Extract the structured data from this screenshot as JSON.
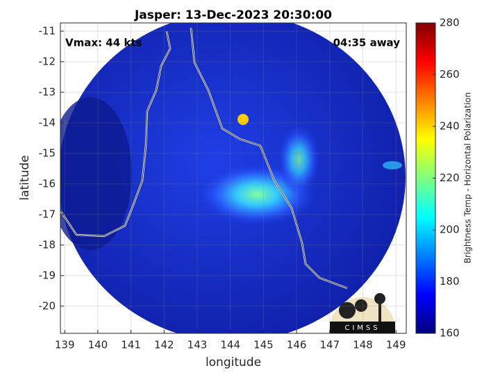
{
  "chart_data": {
    "type": "map",
    "title": "Jasper: 13-Dec-2023 20:30:00",
    "annotations": [
      "Vmax: 44 kts",
      "04:35 away"
    ],
    "xlabel": "longitude",
    "ylabel": "latitude",
    "xlim": [
      138.87,
      149.31
    ],
    "ylim": [
      -20.89,
      -10.73
    ],
    "xticks": [
      139,
      140,
      141,
      142,
      143,
      144,
      145,
      146,
      147,
      148,
      149
    ],
    "yticks": [
      -20,
      -19,
      -18,
      -17,
      -16,
      -15,
      -14,
      -13,
      -12,
      -11
    ],
    "grid": true,
    "colorbar": {
      "label": "Brightness Temp - Horizontal Polarization",
      "colormap": "jet",
      "clim": [
        160,
        280
      ],
      "ticks": [
        160,
        180,
        200,
        220,
        240,
        260,
        280
      ]
    }
  }
}
